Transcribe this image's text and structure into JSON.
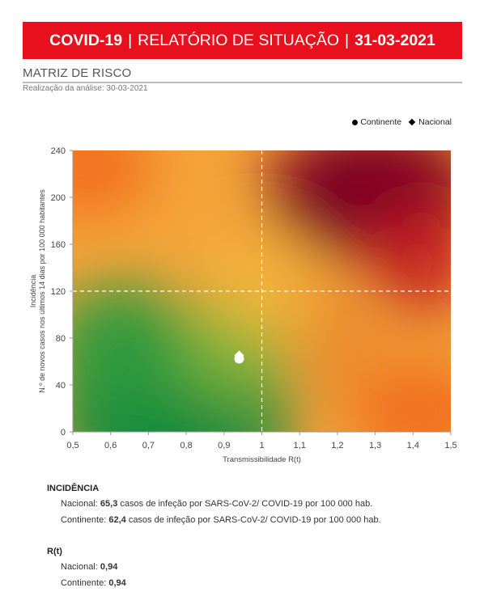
{
  "header": {
    "title_left": "COVID-19",
    "title_mid": "RELATÓRIO DE SITUAÇÃO",
    "title_right": "31-03-2021",
    "separator": "|",
    "background_color": "#e8101c"
  },
  "section": {
    "title": "MATRIZ DE RISCO",
    "subtitle": "Realização da análise: 30-03-2021"
  },
  "legend": {
    "continente": "Continente",
    "nacional": "Nacional"
  },
  "chart_data": {
    "type": "scatter",
    "title": "",
    "xlabel": "Transmissibilidade R(t)",
    "ylabel_line1": "Incidência",
    "ylabel_line2": "N.º de novos casos nos últimos 14 dias por 100 000 habitantes",
    "xlim": [
      0.5,
      1.5
    ],
    "ylim": [
      0,
      240
    ],
    "x_ticks": [
      "0,5",
      "0,6",
      "0,7",
      "0,8",
      "0,9",
      "1",
      "1,1",
      "1,2",
      "1,3",
      "1,4",
      "1,5"
    ],
    "y_ticks": [
      "0",
      "40",
      "80",
      "120",
      "160",
      "200",
      "240"
    ],
    "threshold_x": 1,
    "threshold_y": 120,
    "background": "risk gradient: green (low R, low incidence) to dark red (high R, high incidence)",
    "series": [
      {
        "name": "Continente",
        "marker": "circle",
        "x": 0.94,
        "y": 62.4
      },
      {
        "name": "Nacional",
        "marker": "diamond",
        "x": 0.94,
        "y": 65.3
      }
    ]
  },
  "summary": {
    "incidencia_title": "INCIDÊNCIA",
    "nacional_label": "Nacional:",
    "nacional_value": "65,3",
    "nacional_text": "casos de infeção por SARS-CoV-2/ COVID-19 por 100 000 hab.",
    "continente_label": "Continente:",
    "continente_value": "62,4",
    "continente_text": "casos de infeção por SARS-CoV-2/ COVID-19 por 100 000 hab.",
    "rt_title": "R(t)",
    "rt_nacional_label": "Nacional:",
    "rt_nacional_value": "0,94",
    "rt_continente_label": "Continente:",
    "rt_continente_value": "0,94"
  }
}
